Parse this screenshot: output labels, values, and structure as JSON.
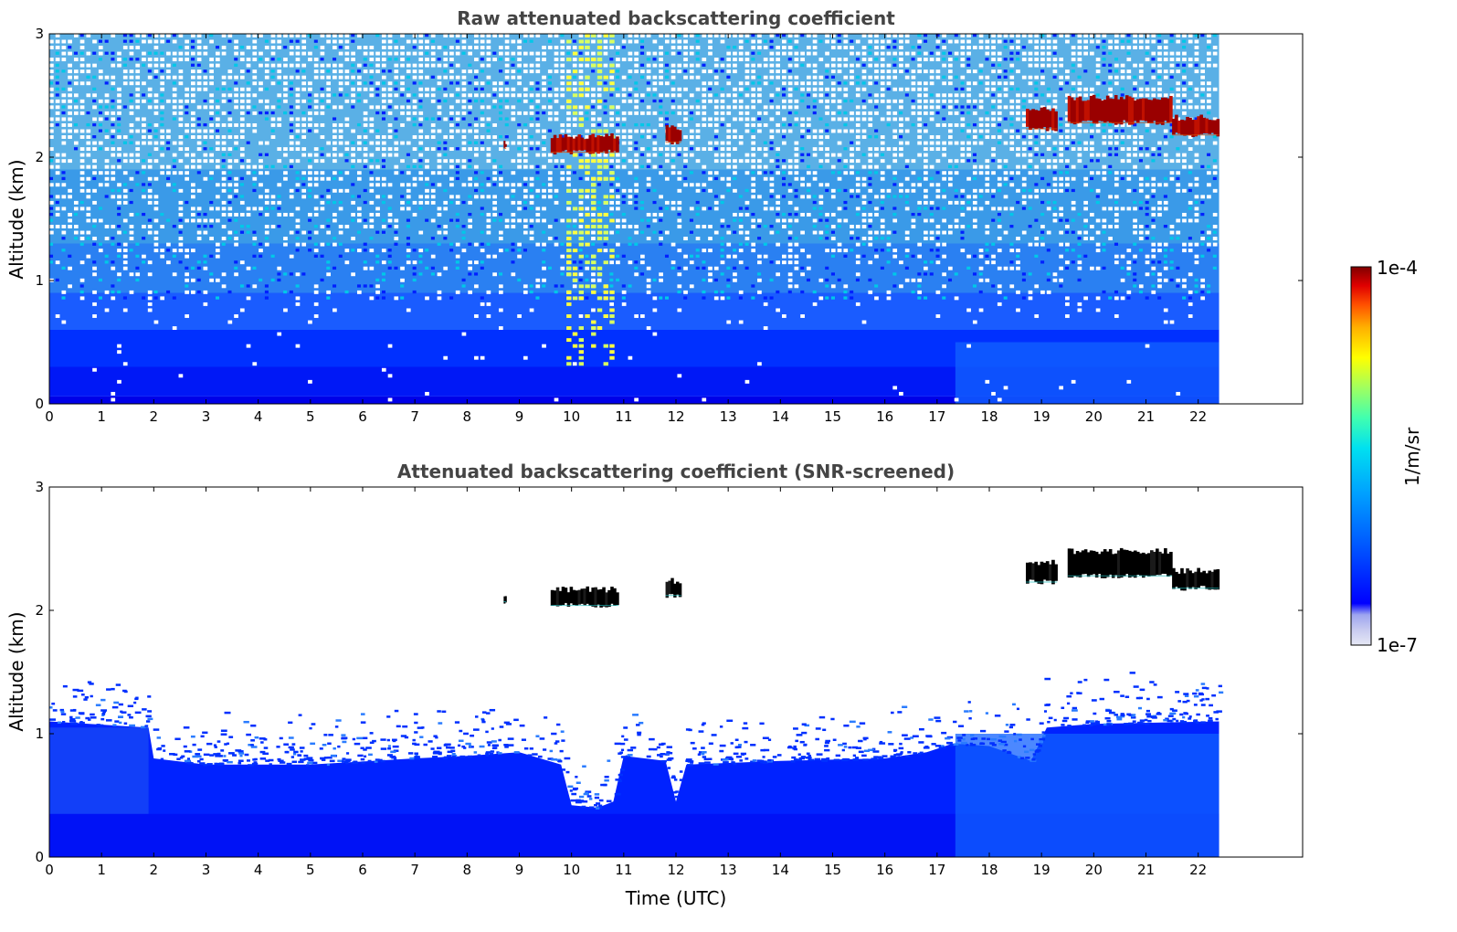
{
  "chart_data": [
    {
      "type": "heatmap",
      "title": "Raw attenuated backscattering coefficient",
      "ylabel": "Altitude (km)",
      "xlabel": "",
      "xlim": [
        0,
        24
      ],
      "ylim": [
        0,
        3
      ],
      "xticks": [
        "0",
        "1",
        "2",
        "3",
        "4",
        "5",
        "6",
        "7",
        "8",
        "9",
        "10",
        "11",
        "12",
        "13",
        "14",
        "15",
        "16",
        "17",
        "18",
        "19",
        "20",
        "21",
        "22"
      ],
      "yticks": [
        "0",
        "1",
        "2",
        "3"
      ],
      "data_extent_hours": [
        0,
        22.4
      ],
      "scale": "log",
      "background": {
        "surface_layer_top_km": 0.6,
        "noisy_above_km": 0.9,
        "enhanced_noise_column_utc": [
          9.9,
          10.8
        ]
      },
      "cloud_layers": [
        {
          "start": 8.7,
          "end": 8.75,
          "base": 2.07,
          "top": 2.12
        },
        {
          "start": 9.6,
          "end": 10.9,
          "base": 2.04,
          "top": 2.17
        },
        {
          "start": 11.8,
          "end": 12.1,
          "base": 2.12,
          "top": 2.24
        },
        {
          "start": 18.7,
          "end": 19.3,
          "base": 2.23,
          "top": 2.39
        },
        {
          "start": 19.5,
          "end": 21.5,
          "base": 2.28,
          "top": 2.48
        },
        {
          "start": 21.5,
          "end": 22.4,
          "base": 2.18,
          "top": 2.32
        }
      ]
    },
    {
      "type": "heatmap",
      "title": "Attenuated backscattering coefficient (SNR-screened)",
      "ylabel": "Altitude (km)",
      "xlabel": "Time (UTC)",
      "xlim": [
        0,
        24
      ],
      "ylim": [
        0,
        3
      ],
      "xticks": [
        "0",
        "1",
        "2",
        "3",
        "4",
        "5",
        "6",
        "7",
        "8",
        "9",
        "10",
        "11",
        "12",
        "13",
        "14",
        "15",
        "16",
        "17",
        "18",
        "19",
        "20",
        "21",
        "22"
      ],
      "yticks": [
        "0",
        "1",
        "2",
        "3"
      ],
      "data_extent_hours": [
        0,
        22.4
      ],
      "scale": "log",
      "screened_boundary_layer_top_km": [
        [
          0,
          1.1
        ],
        [
          1.9,
          1.05
        ],
        [
          2,
          0.8
        ],
        [
          3,
          0.75
        ],
        [
          5,
          0.75
        ],
        [
          7,
          0.8
        ],
        [
          8,
          0.82
        ],
        [
          9,
          0.85
        ],
        [
          9.8,
          0.75
        ],
        [
          10,
          0.42
        ],
        [
          10.5,
          0.4
        ],
        [
          10.8,
          0.45
        ],
        [
          11,
          0.82
        ],
        [
          11.8,
          0.78
        ],
        [
          12,
          0.45
        ],
        [
          12.2,
          0.75
        ],
        [
          14,
          0.78
        ],
        [
          16,
          0.8
        ],
        [
          16.8,
          0.85
        ],
        [
          17.3,
          0.92
        ],
        [
          18,
          0.9
        ],
        [
          18.8,
          0.78
        ],
        [
          19.1,
          1.05
        ],
        [
          20,
          1.08
        ],
        [
          22.4,
          1.1
        ]
      ],
      "cloud_layers": [
        {
          "start": 8.7,
          "end": 8.75,
          "base": 2.07,
          "top": 2.12
        },
        {
          "start": 9.6,
          "end": 10.9,
          "base": 2.04,
          "top": 2.17
        },
        {
          "start": 11.8,
          "end": 12.1,
          "base": 2.12,
          "top": 2.24
        },
        {
          "start": 18.7,
          "end": 19.3,
          "base": 2.23,
          "top": 2.39
        },
        {
          "start": 19.5,
          "end": 21.5,
          "base": 2.28,
          "top": 2.48
        },
        {
          "start": 21.5,
          "end": 22.4,
          "base": 2.18,
          "top": 2.32
        }
      ]
    }
  ],
  "colorbar": {
    "max_label": "1e-4",
    "min_label": "1e-7",
    "unit_label": "1/m/sr",
    "colormap": "jet",
    "colors": [
      "#e6e8f5",
      "#c8cbf0",
      "#9ea5f0",
      "#0000ff",
      "#0050ff",
      "#00a0ff",
      "#00e0f0",
      "#40ffb0",
      "#a0ff60",
      "#ffff00",
      "#ffb000",
      "#ff5000",
      "#e00000",
      "#800000"
    ]
  }
}
